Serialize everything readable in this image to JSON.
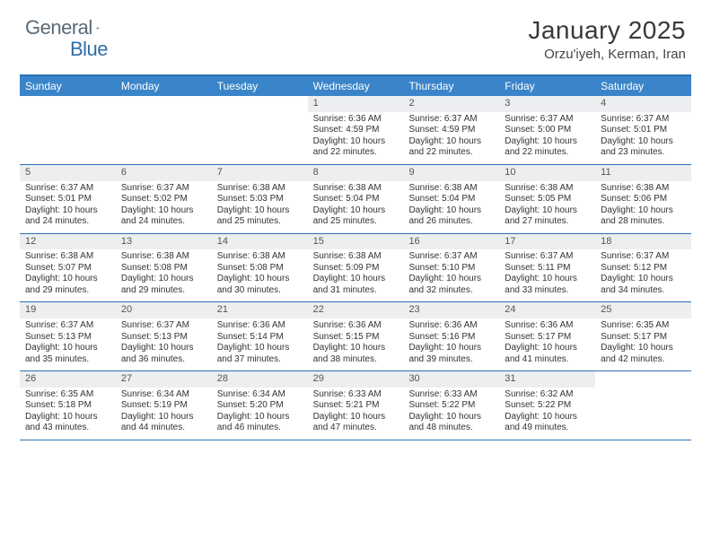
{
  "brand": {
    "part1": "General",
    "part2": "Blue"
  },
  "title": "January 2025",
  "location": "Orzu'iyeh, Kerman, Iran",
  "colors": {
    "header_bar": "#3a85c9",
    "rule": "#2a71b8",
    "daynum_bg": "#eceef0",
    "brand_gray": "#5a6a78",
    "brand_blue": "#2f6fa8"
  },
  "dow": [
    "Sunday",
    "Monday",
    "Tuesday",
    "Wednesday",
    "Thursday",
    "Friday",
    "Saturday"
  ],
  "weeks": [
    [
      {
        "n": "",
        "empty": true
      },
      {
        "n": "",
        "empty": true
      },
      {
        "n": "",
        "empty": true
      },
      {
        "n": "1",
        "sr": "Sunrise: 6:36 AM",
        "ss": "Sunset: 4:59 PM",
        "d1": "Daylight: 10 hours",
        "d2": "and 22 minutes."
      },
      {
        "n": "2",
        "sr": "Sunrise: 6:37 AM",
        "ss": "Sunset: 4:59 PM",
        "d1": "Daylight: 10 hours",
        "d2": "and 22 minutes."
      },
      {
        "n": "3",
        "sr": "Sunrise: 6:37 AM",
        "ss": "Sunset: 5:00 PM",
        "d1": "Daylight: 10 hours",
        "d2": "and 22 minutes."
      },
      {
        "n": "4",
        "sr": "Sunrise: 6:37 AM",
        "ss": "Sunset: 5:01 PM",
        "d1": "Daylight: 10 hours",
        "d2": "and 23 minutes."
      }
    ],
    [
      {
        "n": "5",
        "sr": "Sunrise: 6:37 AM",
        "ss": "Sunset: 5:01 PM",
        "d1": "Daylight: 10 hours",
        "d2": "and 24 minutes."
      },
      {
        "n": "6",
        "sr": "Sunrise: 6:37 AM",
        "ss": "Sunset: 5:02 PM",
        "d1": "Daylight: 10 hours",
        "d2": "and 24 minutes."
      },
      {
        "n": "7",
        "sr": "Sunrise: 6:38 AM",
        "ss": "Sunset: 5:03 PM",
        "d1": "Daylight: 10 hours",
        "d2": "and 25 minutes."
      },
      {
        "n": "8",
        "sr": "Sunrise: 6:38 AM",
        "ss": "Sunset: 5:04 PM",
        "d1": "Daylight: 10 hours",
        "d2": "and 25 minutes."
      },
      {
        "n": "9",
        "sr": "Sunrise: 6:38 AM",
        "ss": "Sunset: 5:04 PM",
        "d1": "Daylight: 10 hours",
        "d2": "and 26 minutes."
      },
      {
        "n": "10",
        "sr": "Sunrise: 6:38 AM",
        "ss": "Sunset: 5:05 PM",
        "d1": "Daylight: 10 hours",
        "d2": "and 27 minutes."
      },
      {
        "n": "11",
        "sr": "Sunrise: 6:38 AM",
        "ss": "Sunset: 5:06 PM",
        "d1": "Daylight: 10 hours",
        "d2": "and 28 minutes."
      }
    ],
    [
      {
        "n": "12",
        "sr": "Sunrise: 6:38 AM",
        "ss": "Sunset: 5:07 PM",
        "d1": "Daylight: 10 hours",
        "d2": "and 29 minutes."
      },
      {
        "n": "13",
        "sr": "Sunrise: 6:38 AM",
        "ss": "Sunset: 5:08 PM",
        "d1": "Daylight: 10 hours",
        "d2": "and 29 minutes."
      },
      {
        "n": "14",
        "sr": "Sunrise: 6:38 AM",
        "ss": "Sunset: 5:08 PM",
        "d1": "Daylight: 10 hours",
        "d2": "and 30 minutes."
      },
      {
        "n": "15",
        "sr": "Sunrise: 6:38 AM",
        "ss": "Sunset: 5:09 PM",
        "d1": "Daylight: 10 hours",
        "d2": "and 31 minutes."
      },
      {
        "n": "16",
        "sr": "Sunrise: 6:37 AM",
        "ss": "Sunset: 5:10 PM",
        "d1": "Daylight: 10 hours",
        "d2": "and 32 minutes."
      },
      {
        "n": "17",
        "sr": "Sunrise: 6:37 AM",
        "ss": "Sunset: 5:11 PM",
        "d1": "Daylight: 10 hours",
        "d2": "and 33 minutes."
      },
      {
        "n": "18",
        "sr": "Sunrise: 6:37 AM",
        "ss": "Sunset: 5:12 PM",
        "d1": "Daylight: 10 hours",
        "d2": "and 34 minutes."
      }
    ],
    [
      {
        "n": "19",
        "sr": "Sunrise: 6:37 AM",
        "ss": "Sunset: 5:13 PM",
        "d1": "Daylight: 10 hours",
        "d2": "and 35 minutes."
      },
      {
        "n": "20",
        "sr": "Sunrise: 6:37 AM",
        "ss": "Sunset: 5:13 PM",
        "d1": "Daylight: 10 hours",
        "d2": "and 36 minutes."
      },
      {
        "n": "21",
        "sr": "Sunrise: 6:36 AM",
        "ss": "Sunset: 5:14 PM",
        "d1": "Daylight: 10 hours",
        "d2": "and 37 minutes."
      },
      {
        "n": "22",
        "sr": "Sunrise: 6:36 AM",
        "ss": "Sunset: 5:15 PM",
        "d1": "Daylight: 10 hours",
        "d2": "and 38 minutes."
      },
      {
        "n": "23",
        "sr": "Sunrise: 6:36 AM",
        "ss": "Sunset: 5:16 PM",
        "d1": "Daylight: 10 hours",
        "d2": "and 39 minutes."
      },
      {
        "n": "24",
        "sr": "Sunrise: 6:36 AM",
        "ss": "Sunset: 5:17 PM",
        "d1": "Daylight: 10 hours",
        "d2": "and 41 minutes."
      },
      {
        "n": "25",
        "sr": "Sunrise: 6:35 AM",
        "ss": "Sunset: 5:17 PM",
        "d1": "Daylight: 10 hours",
        "d2": "and 42 minutes."
      }
    ],
    [
      {
        "n": "26",
        "sr": "Sunrise: 6:35 AM",
        "ss": "Sunset: 5:18 PM",
        "d1": "Daylight: 10 hours",
        "d2": "and 43 minutes."
      },
      {
        "n": "27",
        "sr": "Sunrise: 6:34 AM",
        "ss": "Sunset: 5:19 PM",
        "d1": "Daylight: 10 hours",
        "d2": "and 44 minutes."
      },
      {
        "n": "28",
        "sr": "Sunrise: 6:34 AM",
        "ss": "Sunset: 5:20 PM",
        "d1": "Daylight: 10 hours",
        "d2": "and 46 minutes."
      },
      {
        "n": "29",
        "sr": "Sunrise: 6:33 AM",
        "ss": "Sunset: 5:21 PM",
        "d1": "Daylight: 10 hours",
        "d2": "and 47 minutes."
      },
      {
        "n": "30",
        "sr": "Sunrise: 6:33 AM",
        "ss": "Sunset: 5:22 PM",
        "d1": "Daylight: 10 hours",
        "d2": "and 48 minutes."
      },
      {
        "n": "31",
        "sr": "Sunrise: 6:32 AM",
        "ss": "Sunset: 5:22 PM",
        "d1": "Daylight: 10 hours",
        "d2": "and 49 minutes."
      },
      {
        "n": "",
        "empty": true
      }
    ]
  ]
}
